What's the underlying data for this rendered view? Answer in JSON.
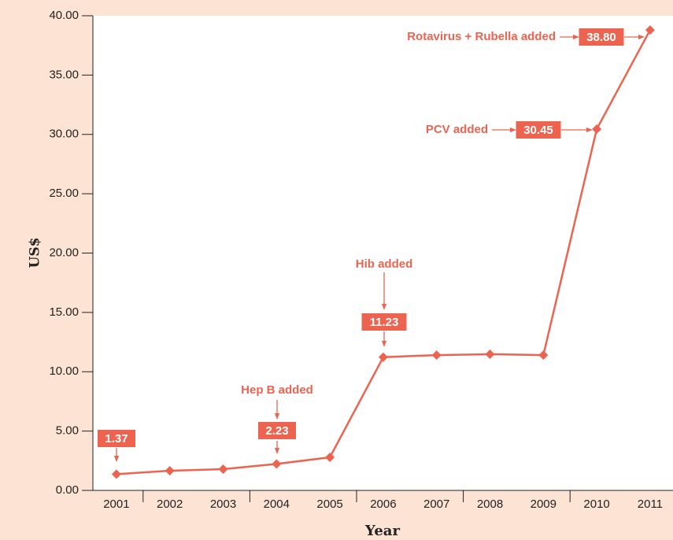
{
  "chart_data": {
    "type": "line",
    "xlabel": "Year",
    "ylabel": "US$",
    "categories": [
      "2001",
      "2002",
      "2003",
      "2004",
      "2005",
      "2006",
      "2007",
      "2008",
      "2009",
      "2010",
      "2011"
    ],
    "series": [
      {
        "name": "US$",
        "color": "#ec6450",
        "values": [
          1.37,
          1.66,
          1.79,
          2.23,
          2.79,
          11.23,
          11.4,
          11.48,
          11.4,
          30.45,
          38.8
        ],
        "value_labels": [
          "1.37",
          null,
          null,
          "2.23",
          null,
          "11.23",
          null,
          null,
          null,
          "30.45",
          "38.80"
        ]
      }
    ],
    "annotations": [
      "Hep B added",
      "Hib added",
      "PCV added",
      "Rotavirus + Rubella added"
    ],
    "ylim": [
      0,
      40
    ],
    "yticks": [
      {
        "value": 0,
        "label": "0.00"
      },
      {
        "value": 5,
        "label": "5.00"
      },
      {
        "value": 10,
        "label": "10.00"
      },
      {
        "value": 15,
        "label": "15.00"
      },
      {
        "value": 20,
        "label": "20.00"
      },
      {
        "value": 25,
        "label": "25.00"
      },
      {
        "value": 30,
        "label": "30.00"
      },
      {
        "value": 35,
        "label": "35.00"
      },
      {
        "value": 40,
        "label": "40.00"
      }
    ]
  }
}
